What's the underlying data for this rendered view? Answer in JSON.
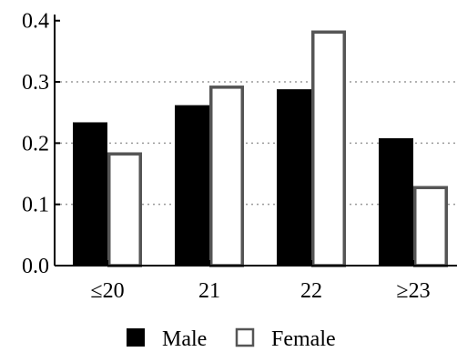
{
  "chart_data": {
    "type": "bar",
    "categories": [
      "≤20",
      "21",
      "22",
      "≥23"
    ],
    "series": [
      {
        "name": "Male",
        "values": [
          0.234,
          0.262,
          0.288,
          0.208
        ],
        "fill": "#000000",
        "stroke": "#000000"
      },
      {
        "name": "Female",
        "values": [
          0.185,
          0.294,
          0.384,
          0.13
        ],
        "fill": "#ffffff",
        "stroke": "#555555"
      }
    ],
    "yticks": [
      {
        "value": 0.0,
        "label": "0.0"
      },
      {
        "value": 0.1,
        "label": "0.1"
      },
      {
        "value": 0.2,
        "label": "0.2"
      },
      {
        "value": 0.3,
        "label": "0.3"
      },
      {
        "value": 0.4,
        "label": "0.4"
      }
    ],
    "ylim": [
      0,
      0.41
    ],
    "gridlines": [
      0.1,
      0.2,
      0.3
    ],
    "grid": true,
    "legend_position": "bottom-center",
    "title": "",
    "xlabel": "",
    "ylabel": "",
    "colors": {
      "axis": "#000000",
      "grid": "#9a9a9a"
    }
  }
}
